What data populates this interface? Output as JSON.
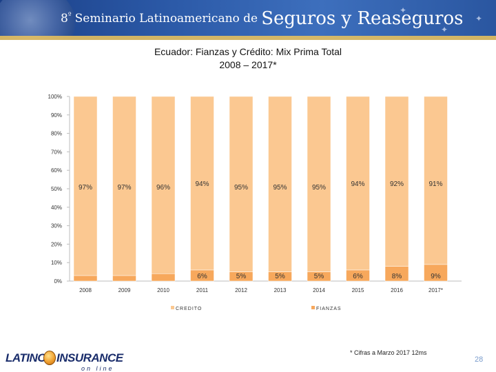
{
  "banner": {
    "ordinal": "8",
    "ordinal_sup": "º",
    "small_text": "Seminario Latinoamericano de",
    "big_text": "Seguros y Reaseguros"
  },
  "chart_data": {
    "type": "bar",
    "stacked": true,
    "title_line1": "Ecuador: Fianzas y Crédito: Mix Prima Total",
    "title_line2": "2008 – 2017*",
    "categories": [
      "2008",
      "2009",
      "2010",
      "2011",
      "2012",
      "2013",
      "2014",
      "2015",
      "2016",
      "2017*"
    ],
    "series": [
      {
        "name": "CREDITO",
        "color": "#fbc891",
        "values": [
          97,
          97,
          96,
          94,
          95,
          95,
          95,
          94,
          92,
          91
        ],
        "labels": [
          "97%",
          "97%",
          "96%",
          "94%",
          "95%",
          "95%",
          "95%",
          "94%",
          "92%",
          "91%"
        ]
      },
      {
        "name": "FIANZAS",
        "color": "#f7a85c",
        "values": [
          3,
          3,
          4,
          6,
          5,
          5,
          5,
          6,
          8,
          9
        ],
        "labels": [
          "",
          "",
          "",
          "6%",
          "5%",
          "5%",
          "5%",
          "6%",
          "8%",
          "9%"
        ]
      }
    ],
    "yticks": [
      "0%",
      "10%",
      "20%",
      "30%",
      "40%",
      "50%",
      "60%",
      "70%",
      "80%",
      "90%",
      "100%"
    ],
    "ylim": [
      0,
      100
    ],
    "legend_position": "bottom"
  },
  "footnote": "* Cifras a Marzo 2017 12ms",
  "page_number": "28",
  "logo": {
    "latino": "LATINO",
    "insurance": "INSURANCE",
    "online": "on line"
  }
}
